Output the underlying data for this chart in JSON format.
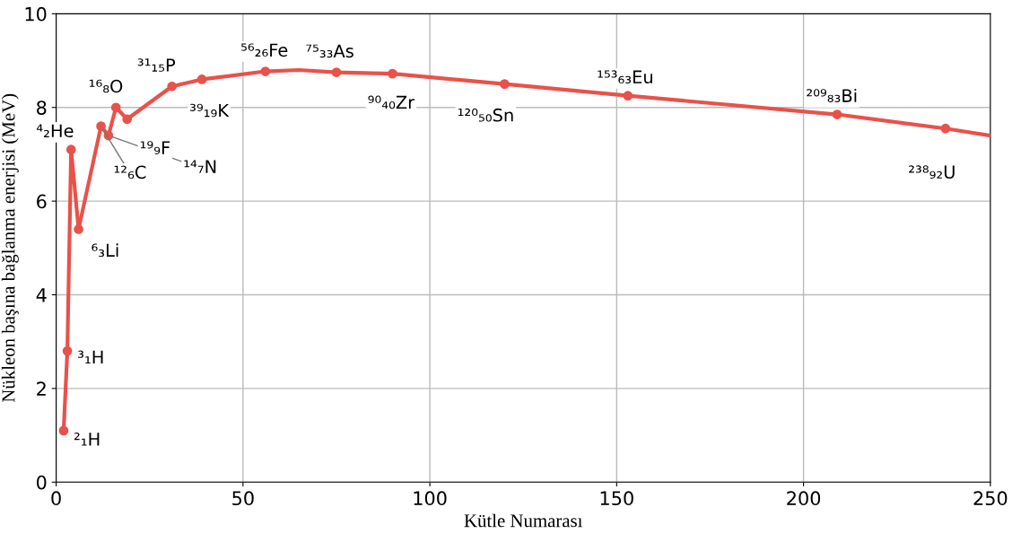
{
  "chart_data": {
    "type": "line",
    "xlabel": "Kütle Numarası",
    "ylabel": "Nükleon başına bağlanma enerjisi (MeV)",
    "xlim": [
      0,
      250
    ],
    "ylim": [
      0,
      10
    ],
    "xticks": [
      0,
      50,
      100,
      150,
      200,
      250
    ],
    "yticks": [
      0,
      2,
      4,
      6,
      8,
      10
    ],
    "grid": true,
    "series": [
      {
        "color": "#e8524a",
        "marker": "none",
        "x": [
          2,
          3,
          4,
          6,
          12,
          14,
          16,
          19,
          31,
          39,
          56,
          65,
          75,
          90,
          120,
          153,
          209,
          238,
          250
        ],
        "values": [
          1.1,
          2.8,
          7.1,
          5.4,
          7.6,
          7.4,
          8.0,
          7.75,
          8.45,
          8.6,
          8.77,
          8.8,
          8.75,
          8.72,
          8.5,
          8.25,
          7.85,
          7.55,
          7.4
        ]
      },
      {
        "type": "scatter",
        "color": "#e8524a",
        "marker": "circle",
        "x": [
          2,
          3,
          4,
          6,
          12,
          14,
          16,
          19,
          31,
          39,
          56,
          75,
          90,
          120,
          153,
          209,
          238
        ],
        "values": [
          1.1,
          2.8,
          7.1,
          5.4,
          7.6,
          7.4,
          8.0,
          7.75,
          8.45,
          8.6,
          8.77,
          8.75,
          8.72,
          8.5,
          8.25,
          7.85,
          7.55
        ]
      }
    ],
    "annotations": [
      {
        "text": "²₁H",
        "x": 2,
        "y": 1.1
      },
      {
        "text": "³₁H",
        "x": 3,
        "y": 2.8
      },
      {
        "text": "⁴₂He",
        "x": 4,
        "y": 7.1
      },
      {
        "text": "⁶₃Li",
        "x": 6,
        "y": 5.4
      },
      {
        "text": "¹²₆C",
        "x": 12,
        "y": 7.6
      },
      {
        "text": "¹⁴₇N",
        "x": 14,
        "y": 7.4
      },
      {
        "text": "¹⁶₈O",
        "x": 16,
        "y": 8.0
      },
      {
        "text": "¹⁹₉F",
        "x": 19,
        "y": 7.75
      },
      {
        "text": "³¹₁₅P",
        "x": 31,
        "y": 8.45
      },
      {
        "text": "³⁹₁₉K",
        "x": 39,
        "y": 8.6
      },
      {
        "text": "⁵⁶₂₆Fe",
        "x": 56,
        "y": 8.77
      },
      {
        "text": "⁷⁵₃₃As",
        "x": 75,
        "y": 8.75
      },
      {
        "text": "⁹⁰₄₀Zr",
        "x": 90,
        "y": 8.72
      },
      {
        "text": "¹²⁰₅₀Sn",
        "x": 120,
        "y": 8.5
      },
      {
        "text": "¹⁵³₆₃Eu",
        "x": 153,
        "y": 8.25
      },
      {
        "text": "²⁰⁹₈₃Bi",
        "x": 209,
        "y": 7.85
      },
      {
        "text": "²³⁸₉₂U",
        "x": 238,
        "y": 7.55
      }
    ]
  }
}
